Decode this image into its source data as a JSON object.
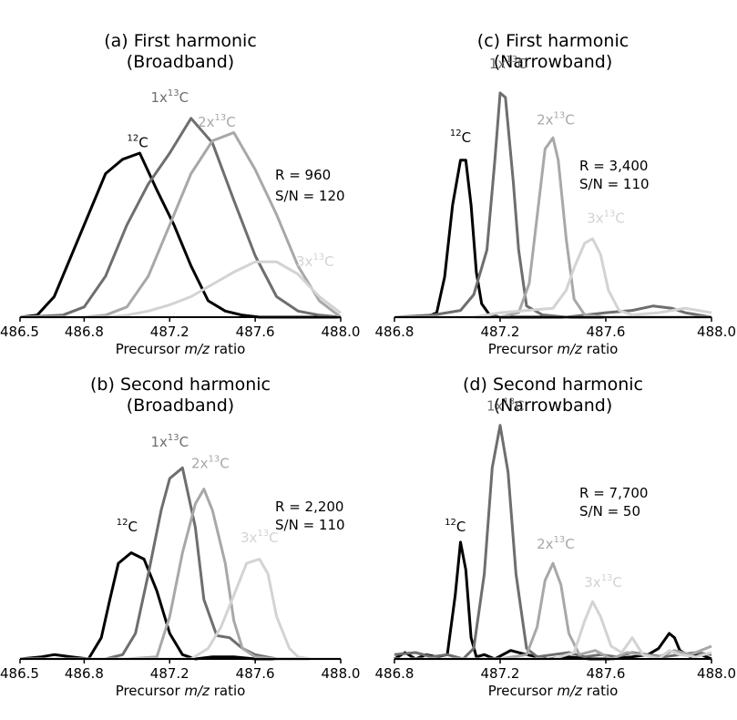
{
  "colors": {
    "c12": "#000000",
    "c13x1": "#6e6e6e",
    "c13x2": "#a8a8a8",
    "c13x3": "#d3d3d3",
    "axis": "#000000"
  },
  "chart_data": [
    {
      "type": "line",
      "title": [
        "(a) First harmonic",
        "(Broadband)"
      ],
      "xlabel": "Precursor m/z ratio",
      "xlim": [
        486.5,
        488.0
      ],
      "xticks": [
        "486.5",
        "486.8",
        "487.2",
        "487.6",
        "488.0"
      ],
      "xtick_values": [
        486.5,
        486.8,
        487.2,
        487.6,
        488.0
      ],
      "stats": [
        "R = 960",
        "S/N = 120"
      ],
      "series": [
        {
          "name": "12C",
          "key": "c12",
          "x": [
            486.5,
            486.58,
            486.66,
            486.74,
            486.82,
            486.9,
            486.98,
            487.06,
            487.14,
            487.22,
            487.3,
            487.38,
            487.46,
            487.54,
            487.62,
            487.7,
            487.78,
            487.86,
            488.0
          ],
          "y": [
            0.0,
            0.01,
            0.1,
            0.3,
            0.5,
            0.7,
            0.77,
            0.8,
            0.62,
            0.45,
            0.25,
            0.08,
            0.03,
            0.01,
            0.0,
            0.0,
            0.0,
            0.0,
            0.0
          ]
        },
        {
          "name": "1x13C",
          "key": "c13x1",
          "x": [
            486.5,
            486.7,
            486.8,
            486.9,
            487.0,
            487.1,
            487.2,
            487.3,
            487.4,
            487.5,
            487.6,
            487.7,
            487.8,
            487.9,
            488.0
          ],
          "y": [
            0.0,
            0.01,
            0.05,
            0.2,
            0.45,
            0.65,
            0.8,
            0.97,
            0.85,
            0.57,
            0.3,
            0.1,
            0.03,
            0.01,
            0.0
          ]
        },
        {
          "name": "2x13C",
          "key": "c13x2",
          "x": [
            486.5,
            486.8,
            486.9,
            487.0,
            487.1,
            487.2,
            487.3,
            487.4,
            487.5,
            487.6,
            487.7,
            487.8,
            487.9,
            488.0
          ],
          "y": [
            0.0,
            0.0,
            0.01,
            0.05,
            0.2,
            0.45,
            0.7,
            0.86,
            0.9,
            0.72,
            0.5,
            0.25,
            0.08,
            0.0
          ]
        },
        {
          "name": "3x13C",
          "key": "c13x3",
          "x": [
            486.5,
            486.9,
            487.0,
            487.1,
            487.2,
            487.3,
            487.4,
            487.5,
            487.6,
            487.7,
            487.8,
            487.9,
            488.0
          ],
          "y": [
            0.0,
            0.0,
            0.01,
            0.03,
            0.06,
            0.1,
            0.16,
            0.22,
            0.27,
            0.27,
            0.21,
            0.1,
            0.02
          ]
        }
      ],
      "labels": [
        {
          "base": "12",
          "text": "C",
          "key": "c12",
          "x": 487.05,
          "y": 0.83
        },
        {
          "base": "1x",
          "sup": "13",
          "text": "C",
          "key": "c13x1",
          "x": 487.2,
          "y": 1.05
        },
        {
          "base": "2x",
          "sup": "13",
          "text": "C",
          "key": "c13x2",
          "x": 487.42,
          "y": 0.93
        },
        {
          "base": "3x",
          "sup": "13",
          "text": "C",
          "key": "c13x3",
          "x": 487.88,
          "y": 0.25
        }
      ]
    },
    {
      "type": "line",
      "title": [
        "(c) First harmonic",
        "(Narrowband)"
      ],
      "xlabel": "Precursor m/z ratio",
      "xlim": [
        486.8,
        488.0
      ],
      "xticks": [
        "486.8",
        "487.2",
        "487.6",
        "488.0"
      ],
      "xtick_values": [
        486.8,
        487.2,
        487.6,
        488.0
      ],
      "stats": [
        "R = 3,400",
        "S/N = 110"
      ],
      "series": [
        {
          "name": "12C",
          "key": "c12",
          "x": [
            486.8,
            486.92,
            486.96,
            486.99,
            487.02,
            487.05,
            487.07,
            487.09,
            487.11,
            487.13,
            487.16,
            487.2,
            487.3,
            487.5,
            487.7,
            487.9,
            488.0
          ],
          "y": [
            0.0,
            0.0,
            0.02,
            0.18,
            0.5,
            0.7,
            0.7,
            0.5,
            0.2,
            0.06,
            0.01,
            0.0,
            0.0,
            0.0,
            0.0,
            0.0,
            0.0
          ]
        },
        {
          "name": "1x13C",
          "key": "c13x1",
          "x": [
            486.8,
            486.95,
            487.05,
            487.1,
            487.15,
            487.18,
            487.2,
            487.22,
            487.25,
            487.27,
            487.3,
            487.33,
            487.36,
            487.45,
            487.6,
            487.7,
            487.78,
            487.85,
            487.9,
            488.0
          ],
          "y": [
            0.0,
            0.01,
            0.03,
            0.1,
            0.3,
            0.7,
            1.0,
            0.98,
            0.6,
            0.3,
            0.05,
            0.03,
            0.01,
            0.0,
            0.02,
            0.03,
            0.05,
            0.04,
            0.02,
            0.0
          ]
        },
        {
          "name": "2x13C",
          "key": "c13x2",
          "x": [
            486.8,
            487.2,
            487.27,
            487.31,
            487.34,
            487.37,
            487.4,
            487.42,
            487.45,
            487.48,
            487.52,
            487.6,
            487.7,
            487.8,
            487.9,
            488.0
          ],
          "y": [
            0.0,
            0.0,
            0.02,
            0.15,
            0.45,
            0.75,
            0.8,
            0.7,
            0.35,
            0.08,
            0.01,
            0.0,
            0.0,
            0.0,
            0.0,
            0.0
          ]
        },
        {
          "name": "3x13C",
          "key": "c13x3",
          "x": [
            486.8,
            487.1,
            487.2,
            487.3,
            487.4,
            487.45,
            487.48,
            487.52,
            487.55,
            487.58,
            487.61,
            487.65,
            487.7,
            487.8,
            487.9,
            487.95,
            488.0
          ],
          "y": [
            0.0,
            0.0,
            0.02,
            0.03,
            0.04,
            0.12,
            0.22,
            0.33,
            0.35,
            0.28,
            0.12,
            0.03,
            0.01,
            0.02,
            0.04,
            0.03,
            0.02
          ]
        }
      ],
      "labels": [
        {
          "base": "12",
          "text": "C",
          "key": "c12",
          "x": 487.05,
          "y": 0.78
        },
        {
          "base": "1x",
          "sup": "13",
          "text": "C",
          "key": "c13x1",
          "x": 487.23,
          "y": 1.11
        },
        {
          "base": "2x",
          "sup": "13",
          "text": "C",
          "key": "c13x2",
          "x": 487.41,
          "y": 0.86
        },
        {
          "base": "3x",
          "sup": "13",
          "text": "C",
          "key": "c13x3",
          "x": 487.6,
          "y": 0.42
        }
      ]
    },
    {
      "type": "line",
      "title": [
        "(b) Second harmonic",
        "(Broadband)"
      ],
      "xlabel": "Precursor m/z ratio",
      "xlim": [
        486.5,
        488.0
      ],
      "xticks": [
        "486.5",
        "486.8",
        "487.2",
        "487.6",
        "488.0"
      ],
      "xtick_values": [
        486.5,
        486.8,
        487.2,
        487.6,
        488.0
      ],
      "stats": [
        "R = 2,200",
        "S/N = 110"
      ],
      "series": [
        {
          "name": "12C",
          "key": "c12",
          "x": [
            486.5,
            486.6,
            486.66,
            486.74,
            486.82,
            486.88,
            486.92,
            486.96,
            487.02,
            487.08,
            487.14,
            487.2,
            487.26,
            487.32,
            487.4,
            487.5,
            487.6,
            488.0
          ],
          "y": [
            0.0,
            0.01,
            0.02,
            0.01,
            0.0,
            0.1,
            0.28,
            0.45,
            0.5,
            0.47,
            0.32,
            0.12,
            0.02,
            0.0,
            0.01,
            0.01,
            0.0,
            0.0
          ]
        },
        {
          "name": "1x13C",
          "key": "c13x1",
          "x": [
            486.5,
            486.9,
            486.98,
            487.04,
            487.1,
            487.16,
            487.2,
            487.26,
            487.32,
            487.36,
            487.42,
            487.48,
            487.54,
            487.6,
            487.7,
            488.0
          ],
          "y": [
            0.0,
            0.0,
            0.02,
            0.12,
            0.4,
            0.7,
            0.85,
            0.9,
            0.62,
            0.28,
            0.11,
            0.1,
            0.05,
            0.02,
            0.0,
            0.0
          ]
        },
        {
          "name": "2x13C",
          "key": "c13x2",
          "x": [
            486.5,
            487.0,
            487.14,
            487.2,
            487.26,
            487.32,
            487.36,
            487.4,
            487.46,
            487.5,
            487.54,
            487.6,
            487.7,
            487.8,
            488.0
          ],
          "y": [
            0.0,
            0.0,
            0.01,
            0.2,
            0.5,
            0.73,
            0.8,
            0.7,
            0.45,
            0.18,
            0.05,
            0.01,
            0.0,
            0.0,
            0.0
          ]
        },
        {
          "name": "3x13C",
          "key": "c13x3",
          "x": [
            486.5,
            487.3,
            487.38,
            487.44,
            487.5,
            487.56,
            487.62,
            487.66,
            487.7,
            487.76,
            487.8,
            487.86,
            488.0
          ],
          "y": [
            0.0,
            0.0,
            0.05,
            0.15,
            0.3,
            0.45,
            0.47,
            0.4,
            0.2,
            0.05,
            0.01,
            0.0,
            0.0
          ]
        }
      ],
      "labels": [
        {
          "base": "12",
          "text": "C",
          "key": "c12",
          "x": 487.0,
          "y": 0.6
        },
        {
          "base": "1x",
          "sup": "13",
          "text": "C",
          "key": "c13x1",
          "x": 487.2,
          "y": 1.0
        },
        {
          "base": "2x",
          "sup": "13",
          "text": "C",
          "key": "c13x2",
          "x": 487.39,
          "y": 0.9
        },
        {
          "base": "3x",
          "sup": "13",
          "text": "C",
          "key": "c13x3",
          "x": 487.62,
          "y": 0.55
        }
      ]
    },
    {
      "type": "line",
      "title": [
        "(d) Second harmonic",
        "(Narrowband)"
      ],
      "xlabel": "Precursor m/z ratio",
      "xlim": [
        486.8,
        488.0
      ],
      "xticks": [
        "486.8",
        "487.2",
        "487.6",
        "488.0"
      ],
      "xtick_values": [
        486.8,
        487.2,
        487.6,
        488.0
      ],
      "stats": [
        "R = 7,700",
        "S/N = 50"
      ],
      "series": [
        {
          "name": "12C",
          "key": "c12",
          "x": [
            486.8,
            486.84,
            486.88,
            486.92,
            486.96,
            487.0,
            487.03,
            487.05,
            487.07,
            487.09,
            487.11,
            487.14,
            487.18,
            487.24,
            487.3,
            487.38,
            487.46,
            487.54,
            487.62,
            487.7,
            487.76,
            487.8,
            487.84,
            487.86,
            487.88,
            487.92,
            487.96,
            488.0
          ],
          "y": [
            0.0,
            0.03,
            0.0,
            0.02,
            0.01,
            0.02,
            0.3,
            0.55,
            0.42,
            0.1,
            0.01,
            0.02,
            0.0,
            0.04,
            0.02,
            0.0,
            0.01,
            0.0,
            0.0,
            0.01,
            0.02,
            0.05,
            0.12,
            0.1,
            0.04,
            0.01,
            0.02,
            0.0
          ]
        },
        {
          "name": "1x13C",
          "key": "c13x1",
          "x": [
            486.8,
            486.88,
            486.94,
            487.0,
            487.06,
            487.1,
            487.14,
            487.17,
            487.2,
            487.23,
            487.26,
            487.3,
            487.34,
            487.4,
            487.46,
            487.52,
            487.58,
            487.64,
            487.7,
            487.76,
            487.82,
            487.88,
            487.94,
            488.0
          ],
          "y": [
            0.02,
            0.03,
            0.01,
            0.02,
            0.0,
            0.05,
            0.4,
            0.9,
            1.1,
            0.88,
            0.4,
            0.05,
            0.01,
            0.02,
            0.03,
            0.01,
            0.02,
            0.01,
            0.03,
            0.02,
            0.01,
            0.02,
            0.03,
            0.02
          ]
        },
        {
          "name": "2x13C",
          "key": "c13x2",
          "x": [
            486.8,
            487.2,
            487.3,
            487.34,
            487.37,
            487.4,
            487.43,
            487.46,
            487.5,
            487.56,
            487.62,
            487.68,
            487.74,
            487.8,
            487.86,
            487.92,
            488.0
          ],
          "y": [
            0.0,
            0.0,
            0.02,
            0.15,
            0.37,
            0.45,
            0.35,
            0.12,
            0.02,
            0.04,
            0.0,
            0.03,
            0.02,
            0.01,
            0.04,
            0.02,
            0.06
          ]
        },
        {
          "name": "3x13C",
          "key": "c13x3",
          "x": [
            486.8,
            487.4,
            487.48,
            487.52,
            487.55,
            487.58,
            487.62,
            487.66,
            487.7,
            487.74,
            487.8,
            487.84,
            487.88,
            487.94,
            488.0
          ],
          "y": [
            0.0,
            0.0,
            0.03,
            0.18,
            0.27,
            0.2,
            0.06,
            0.03,
            0.1,
            0.02,
            0.0,
            0.04,
            0.02,
            0.01,
            0.03
          ]
        }
      ],
      "labels": [
        {
          "base": "12",
          "text": "C",
          "key": "c12",
          "x": 487.03,
          "y": 0.6
        },
        {
          "base": "1x",
          "sup": "13",
          "text": "C",
          "key": "c13x1",
          "x": 487.22,
          "y": 1.17
        },
        {
          "base": "2x",
          "sup": "13",
          "text": "C",
          "key": "c13x2",
          "x": 487.41,
          "y": 0.52
        },
        {
          "base": "3x",
          "sup": "13",
          "text": "C",
          "key": "c13x3",
          "x": 487.59,
          "y": 0.34
        }
      ]
    }
  ]
}
